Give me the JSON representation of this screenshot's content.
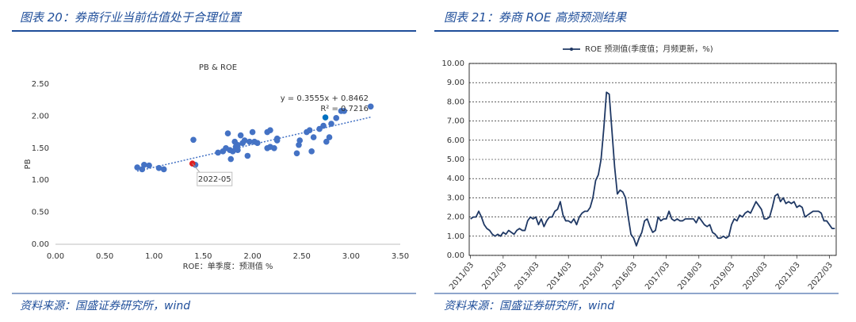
{
  "chart_data": [
    {
      "type": "scatter",
      "heading": "图表 20：券商行业当前估值处于合理位置",
      "source": "资料来源：国盛证券研究所，wind",
      "title": "PB & ROE",
      "xlabel": "ROE：单季度：预测值 %",
      "ylabel": "PB",
      "xlim": [
        0,
        3.5
      ],
      "xticks": [
        {
          "value": 0,
          "label": "0.00"
        },
        {
          "value": 0.5,
          "label": "0.50"
        },
        {
          "value": 1,
          "label": "1.00"
        },
        {
          "value": 1.5,
          "label": "1.50"
        },
        {
          "value": 2,
          "label": "2.00"
        },
        {
          "value": 2.5,
          "label": "2.50"
        },
        {
          "value": 3,
          "label": "3.00"
        },
        {
          "value": 3.5,
          "label": "3.50"
        }
      ],
      "ylim": [
        0,
        2.5
      ],
      "yticks": [
        {
          "value": 0,
          "label": "0.00"
        },
        {
          "value": 0.5,
          "label": "0.50"
        },
        {
          "value": 1,
          "label": "1.00"
        },
        {
          "value": 1.5,
          "label": "1.50"
        },
        {
          "value": 2,
          "label": "2.00"
        },
        {
          "value": 2.5,
          "label": "2.50"
        }
      ],
      "trend": {
        "slope": 0.3555,
        "intercept": 0.8462,
        "color": "#4472c4"
      },
      "annotations": [
        "y = 0.3555x + 0.8462",
        "R² = 0.7216"
      ],
      "series": [
        {
          "color": "#4472c4",
          "x": [
            0.83,
            0.88,
            0.9,
            0.95,
            1.05,
            1.1,
            1.4,
            1.42,
            1.65,
            1.7,
            1.73,
            1.75,
            1.77,
            1.78,
            1.8,
            1.82,
            1.83,
            1.85,
            1.85,
            1.88,
            1.9,
            1.92,
            1.95,
            1.97,
            2.0,
            2.02,
            2.05,
            2.15,
            2.15,
            2.18,
            2.18,
            2.22,
            2.25,
            2.25,
            2.45,
            2.47,
            2.48,
            2.55,
            2.58,
            2.6,
            2.62,
            2.68,
            2.72,
            2.75,
            2.78,
            2.8,
            2.85,
            2.9,
            2.93,
            3.2
          ],
          "values": [
            1.2,
            1.17,
            1.24,
            1.23,
            1.19,
            1.17,
            1.63,
            1.24,
            1.43,
            1.45,
            1.5,
            1.73,
            1.47,
            1.33,
            1.45,
            1.6,
            1.52,
            1.55,
            1.47,
            1.7,
            1.58,
            1.62,
            1.38,
            1.6,
            1.75,
            1.6,
            1.58,
            1.5,
            1.75,
            1.52,
            1.78,
            1.5,
            1.65,
            1.62,
            1.42,
            1.55,
            1.62,
            1.75,
            1.78,
            1.45,
            1.67,
            1.8,
            1.85,
            1.6,
            1.67,
            1.88,
            1.97,
            2.08,
            2.08,
            2.15
          ]
        },
        {
          "color": "#e02020",
          "x": [
            1.39
          ],
          "values": [
            1.26
          ],
          "label": "2022-05"
        },
        {
          "color": "#0070c0",
          "x": [
            2.74
          ],
          "values": [
            1.98
          ]
        }
      ]
    },
    {
      "type": "line",
      "heading": "图表 21：券商 ROE 高频预测结果",
      "source": "资料来源：国盛证券研究所，wind",
      "categories": [
        "2011/03",
        null,
        null,
        null,
        null,
        null,
        null,
        null,
        null,
        null,
        null,
        null,
        "2012/03",
        null,
        null,
        null,
        null,
        null,
        null,
        null,
        null,
        null,
        null,
        null,
        "2013/03",
        null,
        null,
        null,
        null,
        null,
        null,
        null,
        null,
        null,
        null,
        null,
        "2014/03",
        null,
        null,
        null,
        null,
        null,
        null,
        null,
        null,
        null,
        null,
        null,
        "2015/03",
        null,
        null,
        null,
        null,
        null,
        null,
        null,
        null,
        null,
        null,
        null,
        "2016/03",
        null,
        null,
        null,
        null,
        null,
        null,
        null,
        null,
        null,
        null,
        null,
        "2017/03",
        null,
        null,
        null,
        null,
        null,
        null,
        null,
        null,
        null,
        null,
        null,
        "2018/03",
        null,
        null,
        null,
        null,
        null,
        null,
        null,
        null,
        null,
        null,
        null,
        "2019/03",
        null,
        null,
        null,
        null,
        null,
        null,
        null,
        null,
        null,
        null,
        null,
        "2020/03",
        null,
        null,
        null,
        null,
        null,
        null,
        null,
        null,
        null,
        null,
        null,
        "2021/03",
        null,
        null,
        null,
        null,
        null,
        null,
        null,
        null,
        null,
        null,
        null,
        "2022/03",
        null,
        null
      ],
      "ylim": [
        0,
        10
      ],
      "yticks": [
        {
          "value": 0,
          "label": "0.00"
        },
        {
          "value": 1,
          "label": "1.00"
        },
        {
          "value": 2,
          "label": "2.00"
        },
        {
          "value": 3,
          "label": "3.00"
        },
        {
          "value": 4,
          "label": "4.00"
        },
        {
          "value": 5,
          "label": "5.00"
        },
        {
          "value": 6,
          "label": "6.00"
        },
        {
          "value": 7,
          "label": "7.00"
        },
        {
          "value": 8,
          "label": "8.00"
        },
        {
          "value": 9,
          "label": "9.00"
        },
        {
          "value": 10,
          "label": "10.00"
        }
      ],
      "grid": true,
      "series": [
        {
          "name": "ROE 预测值(季度值；月频更新，%)",
          "color": "#1f3864",
          "values": [
            1.9,
            2.0,
            2.0,
            2.3,
            2.0,
            1.6,
            1.4,
            1.3,
            1.1,
            1.0,
            1.1,
            1.0,
            1.2,
            1.1,
            1.3,
            1.2,
            1.1,
            1.3,
            1.4,
            1.3,
            1.3,
            1.8,
            2.0,
            1.9,
            2.0,
            1.6,
            1.9,
            1.5,
            1.8,
            2.0,
            2.0,
            2.3,
            2.4,
            2.8,
            2.1,
            1.8,
            1.8,
            1.7,
            1.9,
            1.6,
            2.0,
            2.2,
            2.3,
            2.3,
            2.5,
            3.0,
            3.9,
            4.2,
            5.0,
            6.6,
            8.5,
            8.4,
            6.5,
            4.6,
            3.2,
            3.4,
            3.3,
            3.0,
            2.0,
            1.1,
            0.9,
            0.5,
            0.9,
            1.2,
            1.8,
            1.9,
            1.5,
            1.2,
            1.3,
            2.0,
            1.8,
            1.9,
            1.9,
            2.3,
            1.9,
            1.8,
            1.9,
            1.8,
            1.8,
            1.9,
            1.9,
            1.9,
            1.9,
            1.7,
            2.0,
            1.8,
            1.6,
            1.5,
            1.6,
            1.2,
            1.1,
            0.9,
            0.9,
            1.0,
            0.9,
            1.0,
            1.6,
            1.9,
            1.8,
            2.1,
            2.0,
            2.2,
            2.3,
            2.2,
            2.5,
            2.8,
            2.6,
            2.4,
            1.9,
            1.9,
            2.0,
            2.5,
            3.1,
            3.2,
            2.8,
            3.0,
            2.7,
            2.8,
            2.7,
            2.8,
            2.5,
            2.6,
            2.5,
            2.0,
            2.1,
            2.2,
            2.3,
            2.3,
            2.3,
            2.2,
            1.8,
            1.8,
            1.6,
            1.4,
            1.4
          ]
        }
      ]
    }
  ]
}
